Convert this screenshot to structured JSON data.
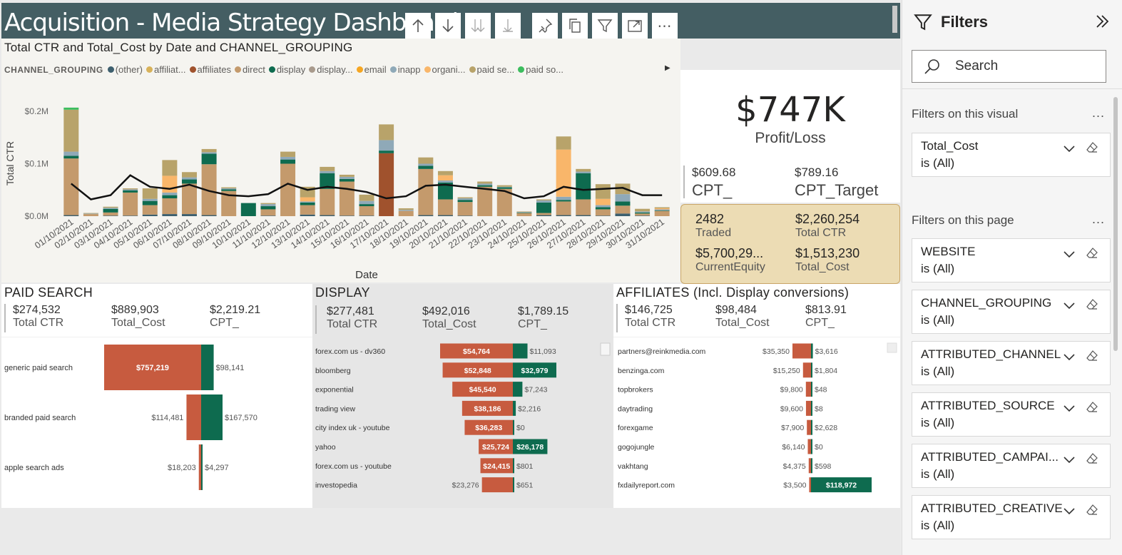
{
  "header": {
    "title": "Acquisition - Media Strategy Dashboard"
  },
  "visual_header": {
    "buttons": [
      {
        "name": "drill-up-icon"
      },
      {
        "name": "drill-down-icon"
      },
      {
        "name": "expand-all-icon"
      },
      {
        "name": "expand-next-icon"
      },
      {
        "name": "pin-icon"
      },
      {
        "name": "copy-icon"
      },
      {
        "name": "filter-icon"
      },
      {
        "name": "focus-mode-icon"
      },
      {
        "name": "more-options-icon"
      }
    ]
  },
  "chart": {
    "title": "Total CTR and Total_Cost by Date and CHANNEL_GROUPING",
    "legend_title": "CHANNEL_GROUPING",
    "legend": [
      {
        "label": "(other)",
        "color": "#3d5f6e"
      },
      {
        "label": "affiliat...",
        "color": "#d8b25a"
      },
      {
        "label": "affiliates",
        "color": "#a0522d"
      },
      {
        "label": "direct",
        "color": "#c49a6c"
      },
      {
        "label": "display",
        "color": "#0e6b4f"
      },
      {
        "label": "display...",
        "color": "#a89a8c"
      },
      {
        "label": "email",
        "color": "#f5a623"
      },
      {
        "label": "inapp",
        "color": "#8fa9b8"
      },
      {
        "label": "organi...",
        "color": "#f9b66a"
      },
      {
        "label": "paid se...",
        "color": "#b8a36a"
      },
      {
        "label": "paid so...",
        "color": "#3cbd5e"
      }
    ]
  },
  "chart_data": {
    "type": "bar",
    "title": "Total CTR and Total_Cost by Date and CHANNEL_GROUPING",
    "xlabel": "Date",
    "ylabel": "Total CTR",
    "ylim": [
      0,
      200000
    ],
    "yticks": [
      "$0.0M",
      "$0.1M",
      "$0.2M"
    ],
    "categories": [
      "01/10/2021",
      "02/10/2021",
      "03/10/2021",
      "04/10/2021",
      "05/10/2021",
      "06/10/2021",
      "07/10/2021",
      "08/10/2021",
      "09/10/2021",
      "10/10/2021",
      "11/10/2021",
      "12/10/2021",
      "13/10/2021",
      "14/10/2021",
      "15/10/2021",
      "16/10/2021",
      "17/10/2021",
      "18/10/2021",
      "19/10/2021",
      "20/10/2021",
      "21/10/2021",
      "22/10/2021",
      "23/10/2021",
      "24/10/2021",
      "25/10/2021",
      "26/10/2021",
      "27/10/2021",
      "28/10/2021",
      "29/10/2021",
      "30/10/2021",
      "31/10/2021"
    ],
    "series": [
      {
        "name": "(other)",
        "color": "#3d5f6e",
        "values": [
          2000,
          0,
          1000,
          1000,
          3000,
          4000,
          4000,
          2000,
          0,
          0,
          1000,
          0,
          3000,
          2000,
          1000,
          1000,
          0,
          0,
          2000,
          2000,
          1000,
          0,
          0,
          0,
          2000,
          2000,
          2000,
          1000,
          5000,
          1000,
          0
        ]
      },
      {
        "name": "direct",
        "color": "#c49a6c",
        "values": [
          108000,
          4000,
          6000,
          44000,
          18000,
          30000,
          58000,
          97000,
          48000,
          0,
          12000,
          100000,
          18000,
          50000,
          65000,
          18000,
          0,
          10000,
          88000,
          30000,
          26000,
          56000,
          52000,
          6000,
          4000,
          26000,
          30000,
          12000,
          15000,
          4000,
          10000
        ]
      },
      {
        "name": "affiliates",
        "color": "#a0522d",
        "values": [
          0,
          0,
          0,
          0,
          0,
          0,
          0,
          0,
          0,
          0,
          0,
          0,
          0,
          0,
          0,
          0,
          120000,
          0,
          0,
          0,
          0,
          0,
          0,
          0,
          0,
          0,
          0,
          0,
          0,
          0,
          0
        ]
      },
      {
        "name": "display",
        "color": "#0e6b4f",
        "values": [
          5000,
          0,
          7000,
          4000,
          8000,
          6000,
          8000,
          20000,
          3000,
          25000,
          6000,
          8000,
          5000,
          30000,
          5000,
          4000,
          5000,
          0,
          6000,
          32000,
          4000,
          3000,
          3000,
          1000,
          20000,
          3000,
          50000,
          4000,
          8000,
          2000,
          1000
        ]
      },
      {
        "name": "inapp",
        "color": "#8fa9b8",
        "values": [
          8000,
          1000,
          2000,
          2000,
          4000,
          5000,
          4000,
          3000,
          2000,
          0,
          4000,
          5000,
          2000,
          4000,
          4000,
          6000,
          20000,
          2000,
          4000,
          4000,
          3000,
          3000,
          1000,
          1000,
          4000,
          6000,
          3000,
          4000,
          14000,
          2000,
          2000
        ]
      },
      {
        "name": "organic",
        "color": "#f9b66a",
        "values": [
          0,
          0,
          0,
          0,
          0,
          32000,
          0,
          0,
          0,
          0,
          0,
          0,
          8000,
          0,
          0,
          0,
          0,
          0,
          0,
          10000,
          0,
          0,
          0,
          0,
          0,
          90000,
          0,
          12000,
          0,
          0,
          2000
        ]
      },
      {
        "name": "paid search",
        "color": "#b8a36a",
        "values": [
          80000,
          1000,
          2000,
          2000,
          20000,
          30000,
          10000,
          6000,
          2000,
          0,
          2000,
          10000,
          20000,
          8000,
          4000,
          12000,
          30000,
          3000,
          12000,
          8000,
          2000,
          4000,
          3000,
          1000,
          2000,
          25000,
          5000,
          28000,
          20000,
          5000,
          2000
        ]
      },
      {
        "name": "paid social",
        "color": "#3cbd5e",
        "values": [
          4000,
          0,
          0,
          0,
          0,
          0,
          0,
          0,
          0,
          0,
          0,
          0,
          0,
          0,
          0,
          0,
          0,
          0,
          0,
          0,
          0,
          0,
          0,
          0,
          0,
          0,
          0,
          0,
          0,
          0,
          0
        ]
      },
      {
        "name": "display conversions",
        "color": "#a89a8c",
        "values": [
          0,
          0,
          0,
          0,
          0,
          0,
          0,
          0,
          0,
          0,
          0,
          0,
          0,
          0,
          0,
          0,
          0,
          0,
          0,
          0,
          0,
          0,
          0,
          0,
          0,
          0,
          0,
          0,
          0,
          0,
          0
        ]
      }
    ],
    "line": {
      "name": "Total_Cost",
      "color": "#111111",
      "values": [
        62000,
        32000,
        40000,
        78000,
        56000,
        52000,
        60000,
        48000,
        40000,
        38000,
        42000,
        62000,
        50000,
        56000,
        52000,
        46000,
        34000,
        38000,
        58000,
        60000,
        56000,
        52000,
        48000,
        34000,
        38000,
        56000,
        50000,
        52000,
        54000,
        40000,
        40000
      ]
    }
  },
  "kpi": {
    "profit_value": "$747K",
    "profit_label": "Profit/Loss",
    "cpt_value": "$609.68",
    "cpt_label": "CPT_",
    "cpt_target_value": "$789.16",
    "cpt_target_label": "CPT_Target",
    "traded_value": "2482",
    "traded_label": "Traded",
    "total_ctr_value": "$2,260,254",
    "total_ctr_label": "Total CTR",
    "equity_value": "$5,700,29...",
    "equity_label": "CurrentEquity",
    "total_cost_value": "$1,513,230",
    "total_cost_label": "Total_Cost"
  },
  "paid_search": {
    "title": "PAID SEARCH",
    "kpis": [
      {
        "value": "$274,532",
        "label": "Total CTR"
      },
      {
        "value": "$889,903",
        "label": "Total_Cost"
      },
      {
        "value": "$2,219.21",
        "label": "CPT_"
      }
    ],
    "rows": [
      {
        "label": "generic paid search",
        "cost": 757219,
        "cost_label": "$757,219",
        "ctr": 98141,
        "ctr_label": "$98,141"
      },
      {
        "label": "branded paid search",
        "cost": 114481,
        "cost_label": "$114,481",
        "ctr": 167570,
        "ctr_label": "$167,570"
      },
      {
        "label": "apple search ads",
        "cost": 18203,
        "cost_label": "$18,203",
        "ctr": 4297,
        "ctr_label": "$4,297"
      }
    ]
  },
  "display": {
    "title": "DISPLAY",
    "kpis": [
      {
        "value": "$277,481",
        "label": "Total CTR"
      },
      {
        "value": "$492,016",
        "label": "Total_Cost"
      },
      {
        "value": "$1,789.15",
        "label": "CPT_"
      }
    ],
    "rows": [
      {
        "label": "forex.com us - dv360",
        "cost": 54764,
        "cost_label": "$54,764",
        "ctr": 11093,
        "ctr_label": "$11,093"
      },
      {
        "label": "bloomberg",
        "cost": 52848,
        "cost_label": "$52,848",
        "ctr": 32979,
        "ctr_label": "$32,979"
      },
      {
        "label": "exponential",
        "cost": 45540,
        "cost_label": "$45,540",
        "ctr": 7243,
        "ctr_label": "$7,243"
      },
      {
        "label": "trading view",
        "cost": 38186,
        "cost_label": "$38,186",
        "ctr": 2216,
        "ctr_label": "$2,216"
      },
      {
        "label": "city index uk - youtube",
        "cost": 36283,
        "cost_label": "$36,283",
        "ctr": 0,
        "ctr_label": "$0"
      },
      {
        "label": "yahoo",
        "cost": 25724,
        "cost_label": "$25,724",
        "ctr": 26178,
        "ctr_label": "$26,178"
      },
      {
        "label": "forex.com us - youtube",
        "cost": 24415,
        "cost_label": "$24,415",
        "ctr": 801,
        "ctr_label": "$801"
      },
      {
        "label": "investopedia",
        "cost": 23276,
        "cost_label": "$23,276",
        "ctr": 651,
        "ctr_label": "$651"
      }
    ]
  },
  "affiliates": {
    "title": "AFFILIATES (Incl. Display conversions)",
    "kpis": [
      {
        "value": "$146,725",
        "label": "Total CTR"
      },
      {
        "value": "$98,484",
        "label": "Total_Cost"
      },
      {
        "value": "$813.91",
        "label": "CPT_"
      }
    ],
    "rows": [
      {
        "label": "partners@reinkmedia.com",
        "cost": 35350,
        "cost_label": "$35,350",
        "ctr": 3616,
        "ctr_label": "$3,616"
      },
      {
        "label": "benzinga.com",
        "cost": 15250,
        "cost_label": "$15,250",
        "ctr": 1804,
        "ctr_label": "$1,804"
      },
      {
        "label": "topbrokers",
        "cost": 9800,
        "cost_label": "$9,800",
        "ctr": 48,
        "ctr_label": "$48"
      },
      {
        "label": "daytrading",
        "cost": 9600,
        "cost_label": "$9,600",
        "ctr": 8,
        "ctr_label": "$8"
      },
      {
        "label": "forexgame",
        "cost": 7900,
        "cost_label": "$7,900",
        "ctr": 2628,
        "ctr_label": "$2,628"
      },
      {
        "label": "gogojungle",
        "cost": 6140,
        "cost_label": "$6,140",
        "ctr": 0,
        "ctr_label": "$0"
      },
      {
        "label": "vakhtang",
        "cost": 4375,
        "cost_label": "$4,375",
        "ctr": 598,
        "ctr_label": "$598"
      },
      {
        "label": "fxdailyreport.com",
        "cost": 3500,
        "cost_label": "$3,500",
        "ctr": 118972,
        "ctr_label": "$118,972"
      }
    ]
  },
  "colors": {
    "cost": "#c75b3f",
    "ctr": "#0e6b4f",
    "title_bar": "#445e63",
    "traded_bg": "#ecdcb4"
  },
  "filters": {
    "title": "Filters",
    "search_placeholder": "Search",
    "visual_section": "Filters on this visual",
    "page_section": "Filters on this page",
    "more": "...",
    "visual_filters": [
      {
        "name": "Total_Cost",
        "value": "is (All)"
      }
    ],
    "page_filters": [
      {
        "name": "WEBSITE",
        "value": "is (All)"
      },
      {
        "name": "CHANNEL_GROUPING",
        "value": "is (All)"
      },
      {
        "name": "ATTRIBUTED_CHANNEL",
        "value": "is (All)"
      },
      {
        "name": "ATTRIBUTED_SOURCE",
        "value": "is (All)"
      },
      {
        "name": "ATTRIBUTED_CAMPAI...",
        "value": "is (All)"
      },
      {
        "name": "ATTRIBUTED_CREATIVE",
        "value": "is (All)"
      }
    ]
  }
}
